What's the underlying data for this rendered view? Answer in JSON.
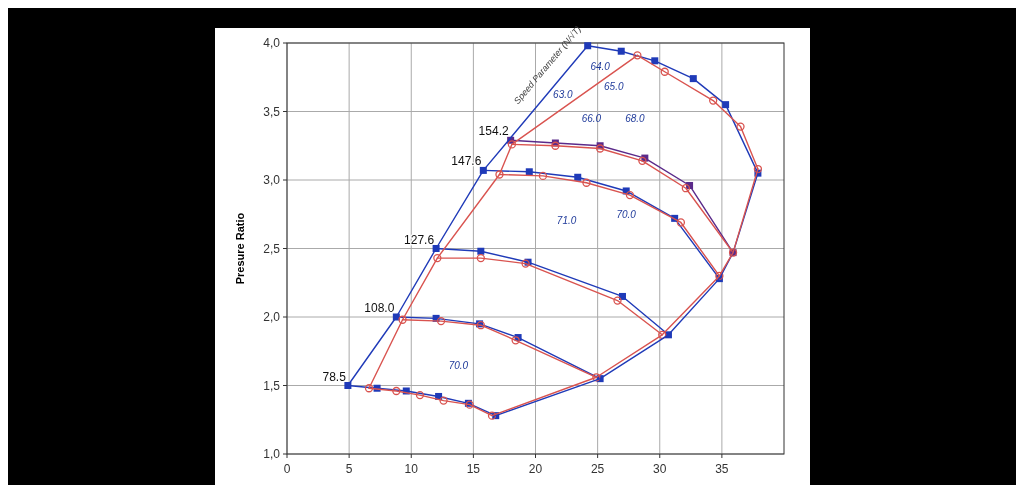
{
  "chart_data": {
    "type": "line",
    "ylabel": "Presure Ratio",
    "xlim": [
      0,
      40
    ],
    "ylim": [
      1,
      4
    ],
    "xticks": [
      0,
      5,
      10,
      15,
      20,
      25,
      30,
      35
    ],
    "yticks": [
      {
        "value": 1,
        "label": "1,0"
      },
      {
        "value": 1.5,
        "label": "1,5"
      },
      {
        "value": 2,
        "label": "2,0"
      },
      {
        "value": 2.5,
        "label": "2,5"
      },
      {
        "value": 3,
        "label": "3,0"
      },
      {
        "value": 3.5,
        "label": "3,5"
      },
      {
        "value": 4,
        "label": "4,0"
      }
    ],
    "grid": true,
    "series": [
      {
        "color": "#1f3ab8",
        "marker": "square",
        "x": [
          4.9,
          7.25,
          9.6,
          12.2,
          14.6,
          16.8
        ],
        "values": [
          1.5,
          1.48,
          1.46,
          1.42,
          1.37,
          1.28
        ]
      },
      {
        "color": "#d9534f",
        "marker": "circle",
        "x": [
          6.6,
          8.8,
          10.7,
          12.6,
          14.7,
          16.5
        ],
        "values": [
          1.48,
          1.46,
          1.43,
          1.39,
          1.36,
          1.28
        ]
      },
      {
        "color": "#1f3ab8",
        "marker": "square",
        "x": [
          8.8,
          12.0,
          15.5,
          18.6,
          25.2
        ],
        "values": [
          2.0,
          1.99,
          1.95,
          1.85,
          1.55
        ]
      },
      {
        "color": "#d9534f",
        "marker": "circle",
        "x": [
          9.3,
          12.4,
          15.6,
          18.4,
          24.9
        ],
        "values": [
          1.98,
          1.97,
          1.94,
          1.83,
          1.56
        ]
      },
      {
        "color": "#1f3ab8",
        "marker": "square",
        "x": [
          12.0,
          15.6,
          19.4,
          27.0,
          30.7
        ],
        "values": [
          2.5,
          2.48,
          2.4,
          2.15,
          1.87
        ]
      },
      {
        "color": "#d9534f",
        "marker": "circle",
        "x": [
          12.1,
          15.6,
          19.2,
          26.6,
          30.2
        ],
        "values": [
          2.43,
          2.43,
          2.39,
          2.12,
          1.87
        ]
      },
      {
        "color": "#1f3ab8",
        "marker": "square",
        "x": [
          15.8,
          19.5,
          23.4,
          27.3,
          31.2,
          34.8
        ],
        "values": [
          3.07,
          3.06,
          3.02,
          2.92,
          2.72,
          2.28
        ]
      },
      {
        "color": "#d9534f",
        "marker": "circle",
        "x": [
          17.1,
          20.6,
          24.1,
          27.6,
          31.7,
          34.8
        ],
        "values": [
          3.04,
          3.03,
          2.98,
          2.89,
          2.69,
          2.3
        ]
      },
      {
        "color": "#5a2a8a",
        "marker": "square",
        "x": [
          18.0,
          21.6,
          25.2,
          28.8,
          32.4,
          35.9
        ],
        "values": [
          3.29,
          3.27,
          3.25,
          3.16,
          2.96,
          2.47
        ]
      },
      {
        "color": "#d9534f",
        "marker": "circle",
        "x": [
          18.1,
          21.6,
          25.2,
          28.6,
          32.1,
          35.9
        ],
        "values": [
          3.26,
          3.25,
          3.23,
          3.14,
          2.94,
          2.47
        ]
      },
      {
        "color": "#1f3ab8",
        "marker": "square",
        "x": [
          24.2,
          26.9,
          29.6,
          32.7,
          35.3,
          37.9
        ],
        "values": [
          3.98,
          3.94,
          3.87,
          3.74,
          3.55,
          3.05
        ]
      },
      {
        "color": "#d9534f",
        "marker": "circle",
        "x": [
          28.2,
          30.4,
          34.3,
          36.5,
          37.9
        ],
        "values": [
          3.91,
          3.79,
          3.58,
          3.39,
          3.08
        ]
      },
      {
        "color": "#1f3ab8",
        "marker": "none",
        "x": [
          4.9,
          8.8,
          12.0,
          15.8,
          24.2
        ],
        "values": [
          1.5,
          2.0,
          2.5,
          3.07,
          3.98
        ]
      },
      {
        "color": "#d9534f",
        "marker": "none",
        "x": [
          6.6,
          9.3,
          12.1,
          17.1,
          18.1,
          28.2
        ],
        "values": [
          1.48,
          1.98,
          2.43,
          3.04,
          3.26,
          3.91
        ]
      },
      {
        "color": "#1f3ab8",
        "marker": "none",
        "x": [
          16.8,
          25.2,
          30.7,
          34.8,
          35.9,
          37.9
        ],
        "values": [
          1.28,
          1.55,
          1.87,
          2.28,
          2.47,
          3.05
        ]
      },
      {
        "color": "#d9534f",
        "marker": "none",
        "x": [
          16.5,
          24.9,
          30.2,
          34.8,
          35.9,
          37.9
        ],
        "values": [
          1.28,
          1.56,
          1.87,
          2.3,
          2.47,
          3.08
        ]
      }
    ],
    "annotations": [
      {
        "text": "78.5",
        "x": 4.9,
        "y": 1.5
      },
      {
        "text": "108.0",
        "x": 8.8,
        "y": 2.0
      },
      {
        "text": "127.6",
        "x": 12.0,
        "y": 2.5
      },
      {
        "text": "147.6",
        "x": 15.8,
        "y": 3.07
      },
      {
        "text": "154.2",
        "x": 18.0,
        "y": 3.29
      },
      "Speed Parameter (N/√T)",
      "63.0",
      "64.0",
      "65.0",
      "66.0",
      "68.0",
      "70.0",
      "71.0",
      "70.0"
    ]
  }
}
